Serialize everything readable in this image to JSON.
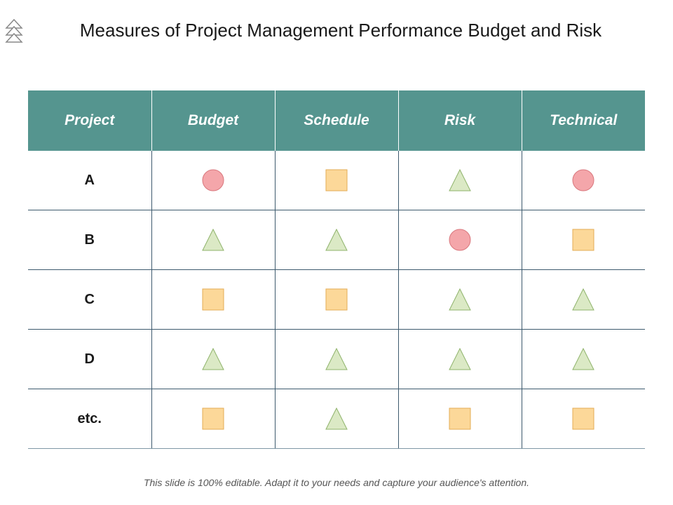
{
  "title": "Measures of Project Management Performance Budget and Risk",
  "colors": {
    "header_bg": "#55958f",
    "header_text": "#ffffff",
    "grid_line": "#3d5a6e",
    "circle_fill": "#f4a6aa",
    "circle_stroke": "#d9777d",
    "square_fill": "#fcd899",
    "square_stroke": "#e3ad56",
    "triangle_fill": "#dbe9c5",
    "triangle_stroke": "#8fb36b"
  },
  "table": {
    "headers": [
      "Project",
      "Budget",
      "Schedule",
      "Risk",
      "Technical"
    ],
    "rows": [
      {
        "project": "A",
        "statuses": [
          "circle",
          "square",
          "triangle",
          "circle"
        ]
      },
      {
        "project": "B",
        "statuses": [
          "triangle",
          "triangle",
          "circle",
          "square"
        ]
      },
      {
        "project": "C",
        "statuses": [
          "square",
          "square",
          "triangle",
          "triangle"
        ]
      },
      {
        "project": "D",
        "statuses": [
          "triangle",
          "triangle",
          "triangle",
          "triangle"
        ]
      },
      {
        "project": "etc.",
        "statuses": [
          "square",
          "triangle",
          "square",
          "square"
        ]
      }
    ]
  },
  "footer": "This slide is 100% editable.  Adapt it to your needs and capture your audience's attention."
}
